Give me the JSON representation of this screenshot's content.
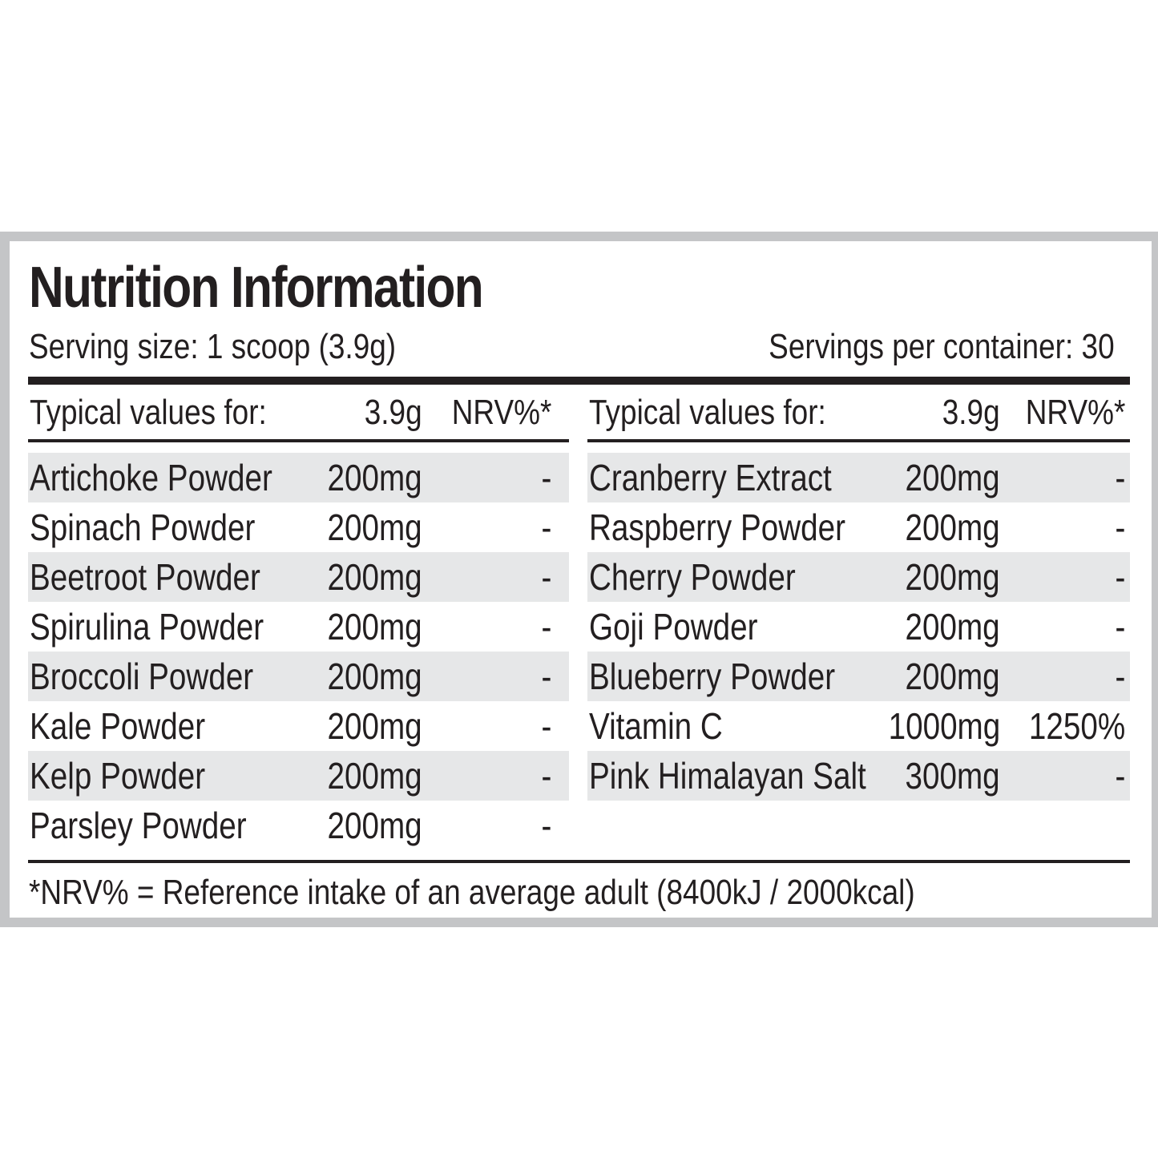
{
  "title": "Nutrition Information",
  "serving_size": "Serving size: 1 scoop (3.9g)",
  "servings_per_container": "Servings per container: 30",
  "columns": [
    {
      "header": {
        "label": "Typical values for:",
        "amount": "3.9g",
        "nrv": "NRV%*"
      },
      "rows": [
        {
          "name": "Artichoke Powder",
          "amount": "200mg",
          "nrv": "-"
        },
        {
          "name": "Spinach Powder",
          "amount": "200mg",
          "nrv": "-"
        },
        {
          "name": "Beetroot Powder",
          "amount": "200mg",
          "nrv": "-"
        },
        {
          "name": "Spirulina Powder",
          "amount": "200mg",
          "nrv": "-"
        },
        {
          "name": "Broccoli Powder",
          "amount": "200mg",
          "nrv": "-"
        },
        {
          "name": "Kale Powder",
          "amount": "200mg",
          "nrv": "-"
        },
        {
          "name": "Kelp Powder",
          "amount": "200mg",
          "nrv": "-"
        },
        {
          "name": "Parsley Powder",
          "amount": "200mg",
          "nrv": "-"
        }
      ]
    },
    {
      "header": {
        "label": "Typical values for:",
        "amount": "3.9g",
        "nrv": "NRV%*"
      },
      "rows": [
        {
          "name": "Cranberry Extract",
          "amount": "200mg",
          "nrv": "-"
        },
        {
          "name": "Raspberry Powder",
          "amount": "200mg",
          "nrv": "-"
        },
        {
          "name": "Cherry Powder",
          "amount": "200mg",
          "nrv": "-"
        },
        {
          "name": "Goji Powder",
          "amount": "200mg",
          "nrv": "-"
        },
        {
          "name": "Blueberry Powder",
          "amount": "200mg",
          "nrv": "-"
        },
        {
          "name": "Vitamin C",
          "amount": "1000mg",
          "nrv": "1250%"
        },
        {
          "name": "Pink Himalayan Salt",
          "amount": "300mg",
          "nrv": "-"
        }
      ]
    }
  ],
  "footnote": "*NRV% = Reference intake of an average adult (8400kJ / 2000kcal)",
  "colors": {
    "text": "#231f20",
    "row_shade": "#e6e7e8",
    "border": "#c4c5c7"
  }
}
